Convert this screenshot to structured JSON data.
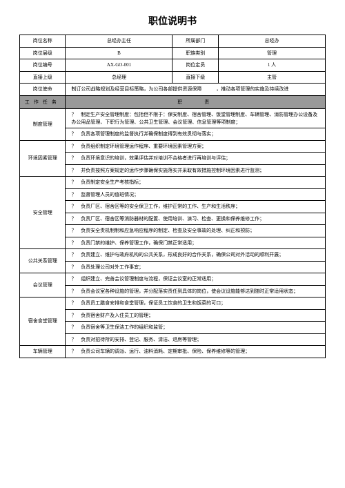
{
  "title": "职位说明书",
  "header": {
    "row1": {
      "l1": "岗位名称",
      "v1": "总经办主任",
      "l2": "所属部门",
      "v2": "总经办"
    },
    "row2": {
      "l1": "岗位层级",
      "v1": "B",
      "l2": "职族类别",
      "v2": "管理"
    },
    "row3": {
      "l1": "岗位编号",
      "v1": "AX-GO-001",
      "l2": "岗位定员",
      "v2": "1 人"
    },
    "row4": {
      "l1": "直接上级",
      "v1": "总经理",
      "l2": "直接下级",
      "v2": "主管"
    },
    "row5": {
      "l1": "岗位使命",
      "v1": "制订公司战略规划及经营目标策略，为公司各部提供资源保障　　　，推动各项管理的实施及持续改进"
    }
  },
  "task_label": "工作任务",
  "task_header": "职　　责",
  "sections": [
    {
      "name": "制度管理",
      "items": [
        "制定生产安全管理制度：包括但不限于：保安制度、宿舍管理、饭堂管理制度、车辆管理、消防管理办公设备及办公用品管理、下职行为管理、公共卫生管理、会议管理、信息管理等项制度；",
        "负责各项管理制度的监督执行并确保制度得到有效贯彻与落实；"
      ]
    },
    {
      "name": "环境因素管理",
      "items": [
        "负责组织制定环境管理运作程序、重要环境因素管理方案；",
        "负责环境意识的培训，效果评估并对培训不合格者进行再培训与评估；",
        "并负责按照方案规定的运作步骤确保实施落实并采取有效措施控制环境因素进行监测；"
      ]
    },
    {
      "name": "安全管理",
      "items": [
        "负责制定安全生产考核指标；",
        "监督管理人员的值班情况；",
        "负责厂区、宿舍区等的安全保卫工作，维护正常的工作、生产和生活秩序；",
        "负责厂区、宿舍区等消防器材的配置、使用培训、演习、检查、更换和保养维修工作；",
        "负责安全责机制制和应急响应程序的制定、检查及安全事故的处理、纠正和预防；",
        "负责门禁的维护、保养管理工作，确保门禁正常适用；"
      ]
    },
    {
      "name": "公共关系管理",
      "items": [
        "负责建立、维护与政府机构的公共关系，形成良好的合作关系，确保公司对外活动的顺利开展；",
        "负责处理公司对外工作事宜；"
      ]
    },
    {
      "name": "会议管理",
      "items": [
        "组织建立、完善会议管理制度与流程，保证会议室的正常适用；",
        "负责会议室各种设施的管理，并分配落实责任到具体的岗位，使会议设施能够达到随时正常适用状态；"
      ]
    },
    {
      "name": "宿舍食堂管理",
      "items": [
        "负责员工膳食安排和食堂管理，保证员工饮食的卫生和饭菜的可口；",
        "负责宿舍财产及入住员工的管理；",
        "负责宿舍等卫生保洁工作的组织和监管；",
        "负责对招待所的安排、登记、服务、清洁、退房等管理；"
      ]
    },
    {
      "name": "车辆管理",
      "items": [
        "负责公司车辆的调派、运行、油料消耗、定期审批、保险、保养维修等的管理；"
      ]
    }
  ],
  "q": "？",
  "colors": {
    "border": "#000000",
    "gray": "#999999",
    "bg": "#ffffff"
  }
}
